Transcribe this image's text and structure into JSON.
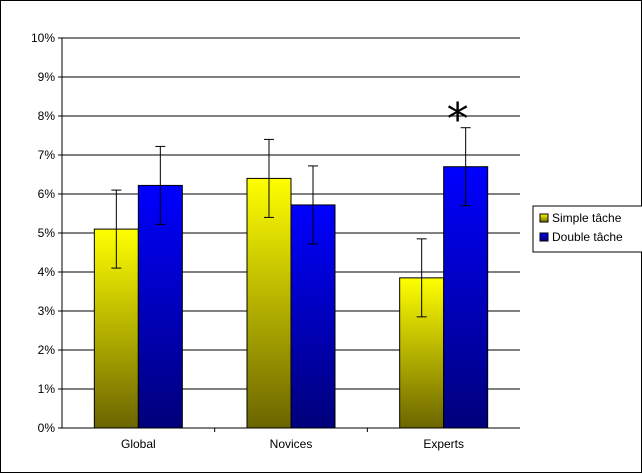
{
  "chart_data": {
    "type": "bar",
    "categories": [
      "Global",
      "Novices",
      "Experts"
    ],
    "series": [
      {
        "name": "Simple tâche",
        "values": [
          5.1,
          6.4,
          3.85
        ],
        "error": [
          1.0,
          1.0,
          1.0
        ],
        "color_top": "#ffff00",
        "color_bottom": "#6b6500"
      },
      {
        "name": "Double tâche",
        "values": [
          6.22,
          5.72,
          6.7
        ],
        "error": [
          1.0,
          1.0,
          1.0
        ],
        "color_top": "#0000ff",
        "color_bottom": "#00007a"
      }
    ],
    "ylim": [
      0,
      10
    ],
    "yticks": [
      "0%",
      "1%",
      "2%",
      "3%",
      "4%",
      "5%",
      "6%",
      "7%",
      "8%",
      "9%",
      "10%"
    ],
    "grid": true,
    "legend_position": "right",
    "annotations": [
      {
        "text": "*",
        "category": "Experts",
        "series": "Double tâche",
        "y": 8.0
      }
    ]
  }
}
